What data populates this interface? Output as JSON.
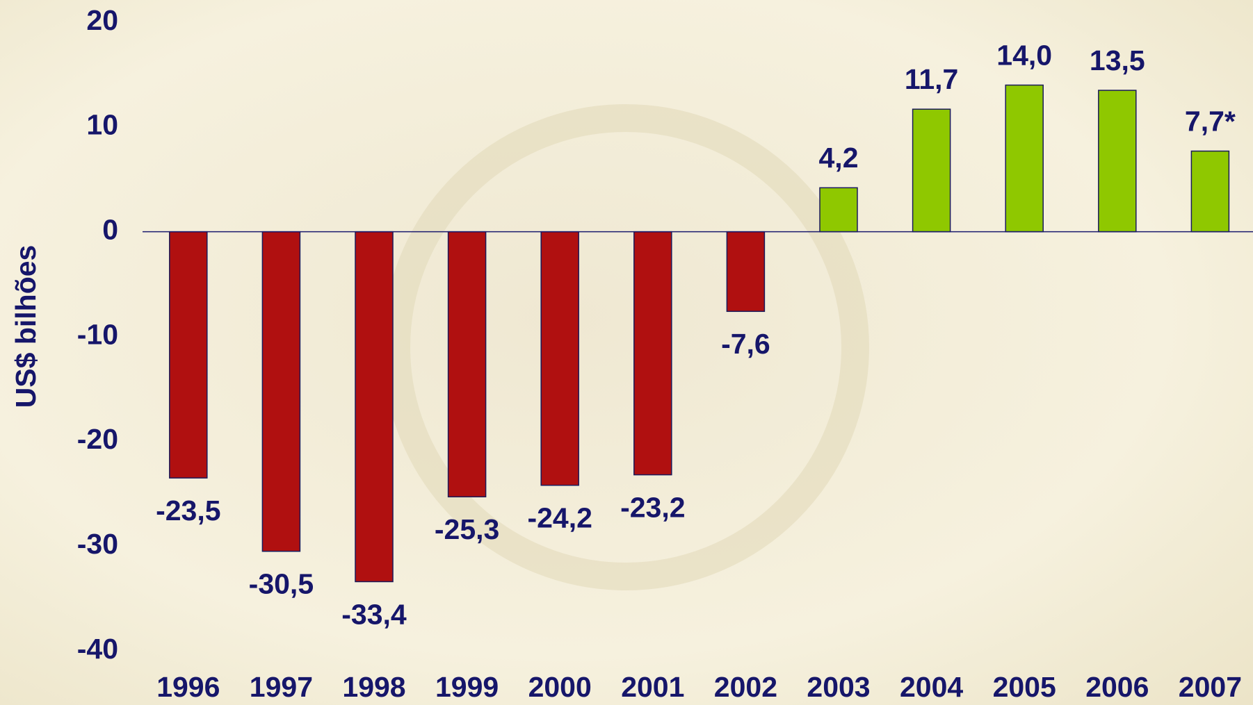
{
  "chart_data": {
    "type": "bar",
    "y_label": "US$ bilhões",
    "categories": [
      "1996",
      "1997",
      "1998",
      "1999",
      "2000",
      "2001",
      "2002",
      "2003",
      "2004",
      "2005",
      "2006",
      "2007"
    ],
    "values": [
      -23.5,
      -30.5,
      -33.4,
      -25.3,
      -24.2,
      -23.2,
      -7.6,
      4.2,
      11.7,
      14.0,
      13.5,
      7.7
    ],
    "value_labels": [
      "-23,5",
      "-30,5",
      "-33,4",
      "-25,3",
      "-24,2",
      "-23,2",
      "-7,6",
      "4,2",
      "11,7",
      "14,0",
      "13,5",
      "7,7*"
    ],
    "colors": [
      "#b01010",
      "#b01010",
      "#b01010",
      "#b01010",
      "#b01010",
      "#b01010",
      "#b01010",
      "#8fc800",
      "#8fc800",
      "#8fc800",
      "#8fc800",
      "#8fc800"
    ],
    "ylim": [
      -40,
      20
    ],
    "yticks": [
      20,
      10,
      0,
      -10,
      -20,
      -30,
      -40
    ],
    "grid": false
  }
}
